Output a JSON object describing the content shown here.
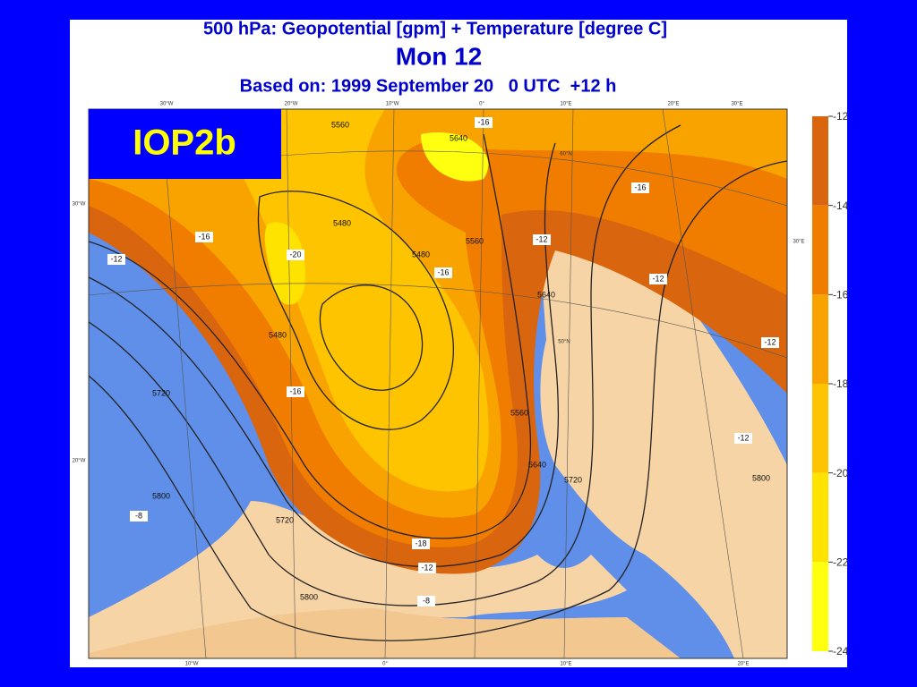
{
  "header": {
    "title": "500 hPa: Geopotential [gpm] + Temperature [degree C]",
    "subtitle": "Mon 12",
    "based_on": "Based on: 1999 September 20   0 UTC  +12 h"
  },
  "badge": "IOP2b",
  "colorbar": {
    "ticks": [
      -12,
      -14,
      -16,
      -18,
      -20,
      -22,
      -24
    ],
    "colors": [
      "#d9650f",
      "#f07d00",
      "#f8a300",
      "#ffc400",
      "#ffe300",
      "#ffff10"
    ]
  },
  "map": {
    "contour_labels": [
      "5560",
      "5640",
      "5480",
      "5480",
      "5560",
      "5640",
      "5720",
      "5800",
      "5480",
      "5560",
      "5640",
      "5720",
      "5800",
      "-16",
      "-16",
      "-12",
      "-12",
      "-16",
      "-20",
      "-16",
      "-12",
      "-12",
      "-8",
      "-8",
      "-12",
      "-16",
      "5720",
      "5800",
      "-18",
      "-12"
    ],
    "graticule_labels": [
      "30°W",
      "20°W",
      "10°W",
      "0°",
      "10°E",
      "20°E",
      "30°E",
      "30°W",
      "20°W",
      "60°N",
      "50°N",
      "30°E",
      "10°W",
      "0°",
      "10°E",
      "20°E"
    ]
  }
}
